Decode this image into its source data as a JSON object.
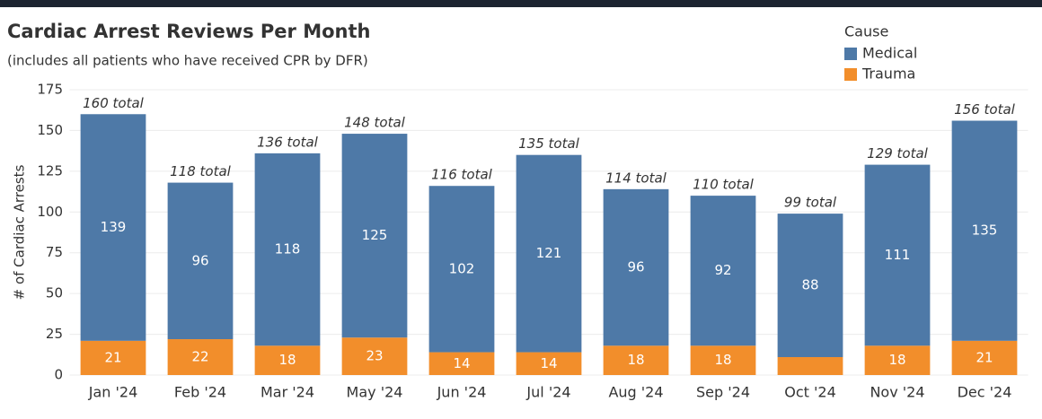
{
  "chart_data": {
    "type": "stacked_bar",
    "title": "Cardiac Arrest Reviews Per Month",
    "subtitle": "(includes all patients who have received CPR by DFR)",
    "y_label": "# of Cardiac Arrests",
    "legend_title": "Cause",
    "legend": "top-right",
    "grid": true,
    "categories": [
      "Jan '24",
      "Feb '24",
      "Mar '24",
      "May '24",
      "Jun '24",
      "Jul '24",
      "Aug '24",
      "Sep '24",
      "Oct '24",
      "Nov '24",
      "Dec '24"
    ],
    "series": [
      {
        "name": "Trauma",
        "color": "#f28e2b",
        "values": [
          21,
          22,
          18,
          23,
          14,
          14,
          18,
          18,
          11,
          18,
          21
        ],
        "value_labels": [
          "21",
          "22",
          "18",
          "23",
          "14",
          "14",
          "18",
          "18",
          null,
          "18",
          "21"
        ]
      },
      {
        "name": "Medical",
        "color": "#4e79a7",
        "values": [
          139,
          96,
          118,
          125,
          102,
          121,
          96,
          92,
          88,
          111,
          135
        ]
      }
    ],
    "annotations": [
      "160 total",
      "118 total",
      "136 total",
      "148 total",
      "116 total",
      "135 total",
      "114 total",
      "110 total",
      "99 total",
      "129 total",
      "156 total"
    ],
    "ylim": [
      0,
      175
    ],
    "yticks": [
      0,
      25,
      50,
      75,
      100,
      125,
      150,
      175
    ]
  }
}
